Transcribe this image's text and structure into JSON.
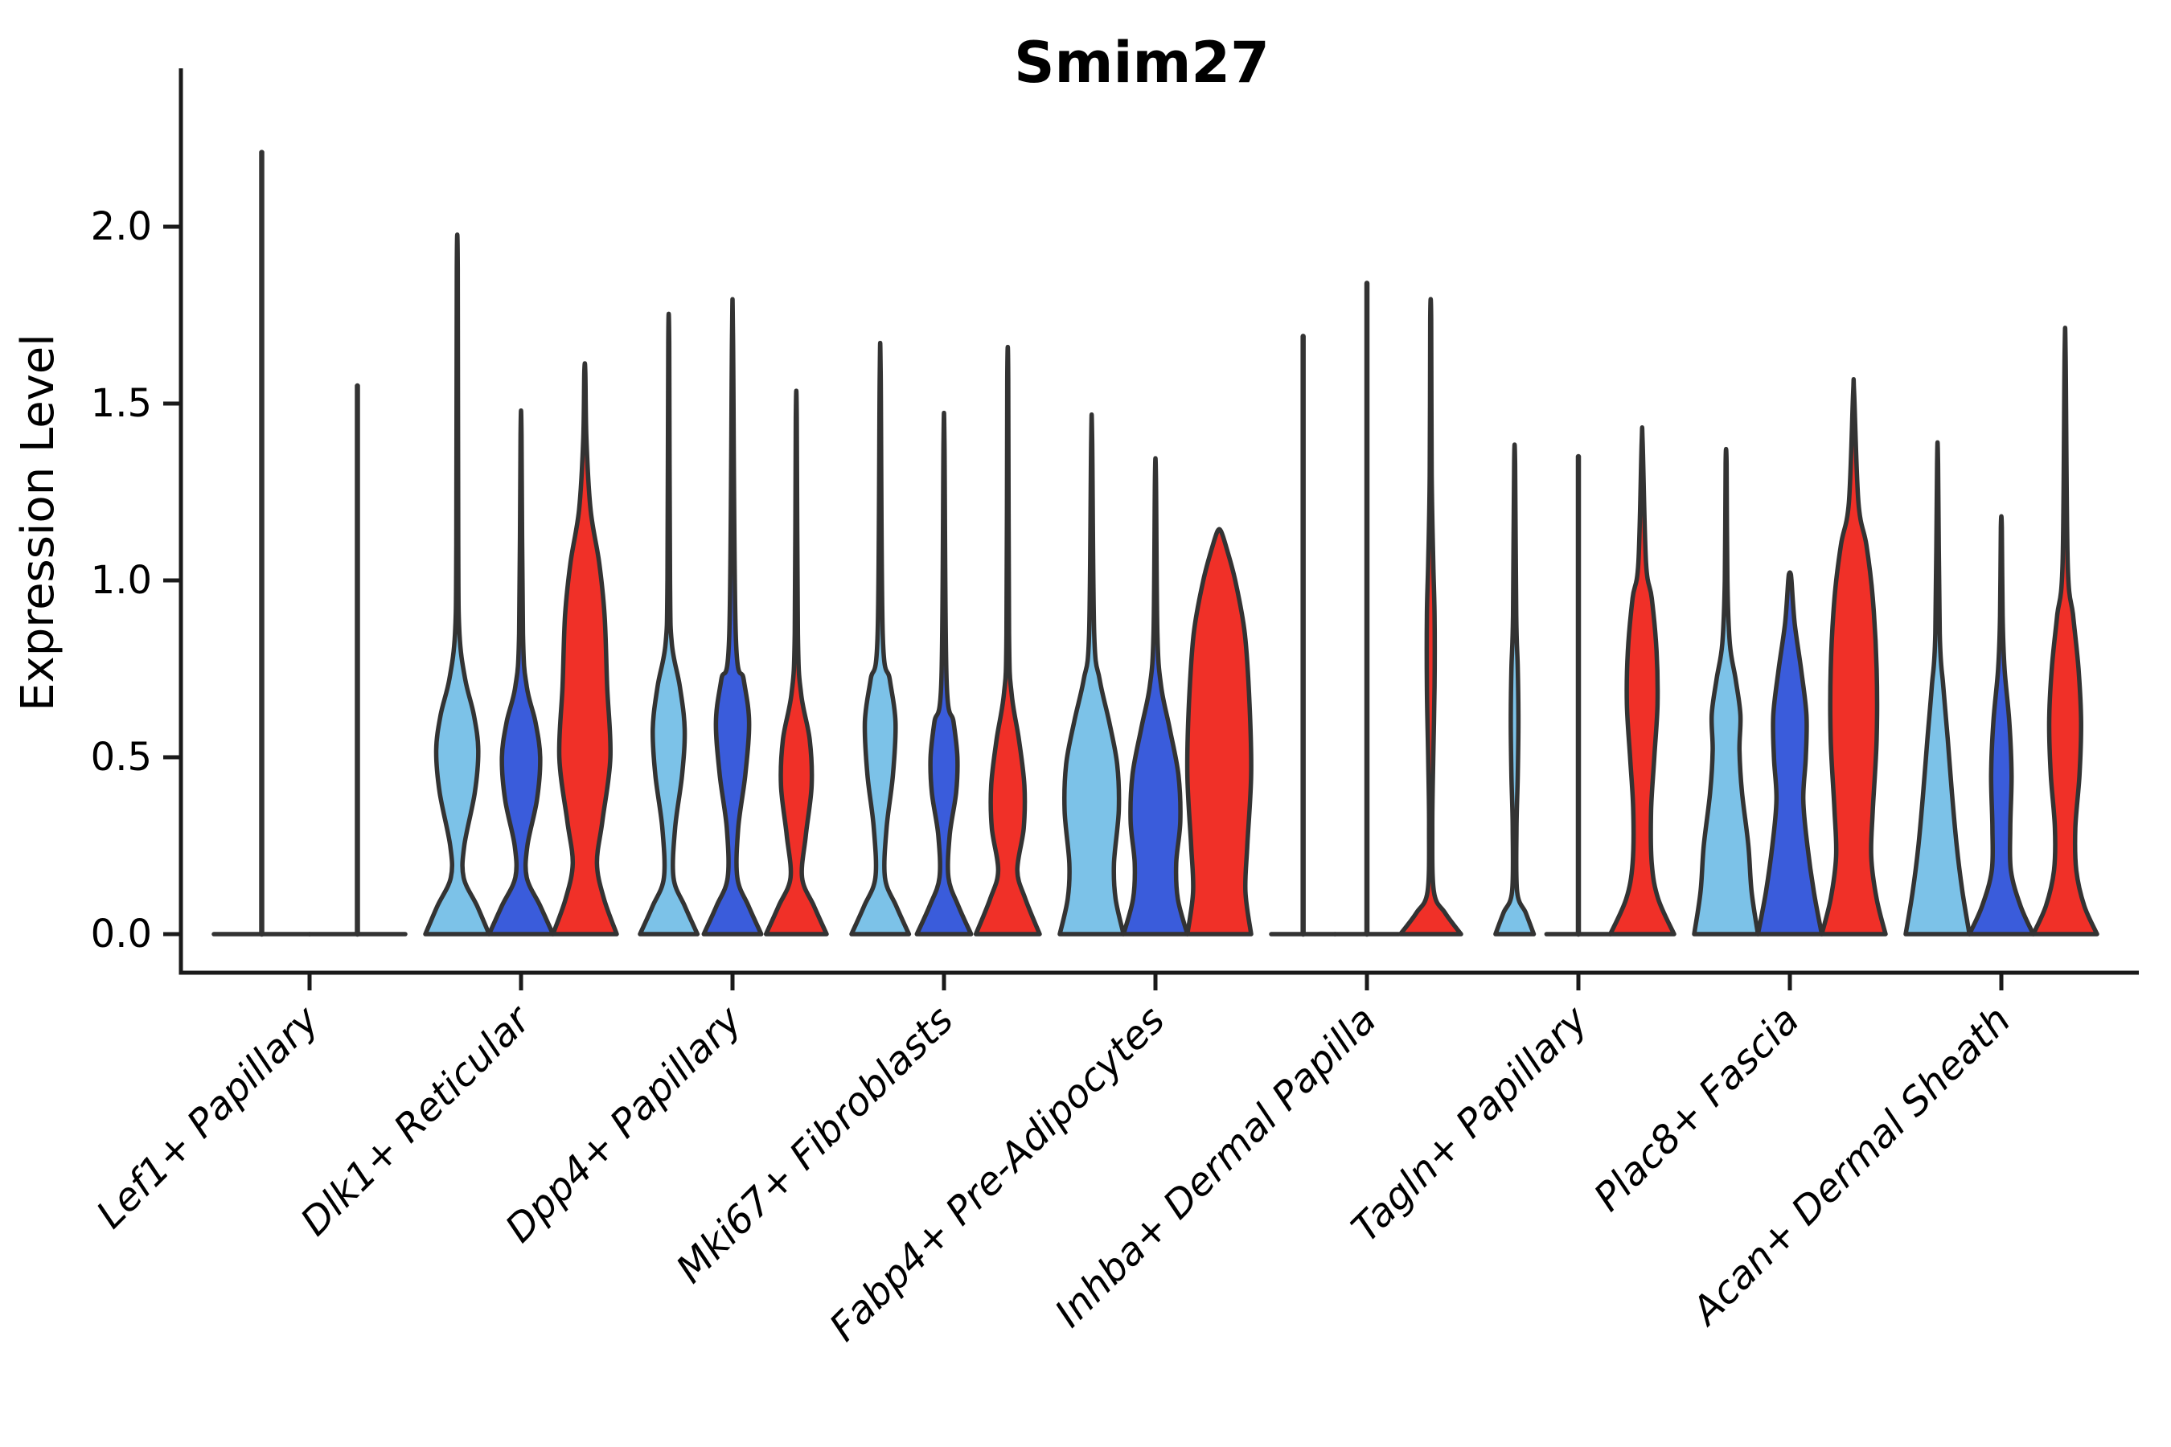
{
  "chart_data": {
    "type": "violin",
    "title": "Smim27",
    "ylabel": "Expression Level",
    "xlabel": "",
    "ylim": [
      -0.11,
      2.45
    ],
    "yticks": [
      0.0,
      0.5,
      1.0,
      1.5,
      2.0
    ],
    "ytick_labels": [
      "0.0",
      "0.5",
      "1.0",
      "1.5",
      "2.0"
    ],
    "grid": false,
    "legend_position": "none",
    "colors": {
      "lightblue": "#7CC2E8",
      "darkblue": "#3A5CDB",
      "red": "#F03028",
      "outline": "#333333",
      "axis": "#1a1a1a"
    },
    "categories": [
      "Lef1+ Papillary",
      "Dlk1+ Reticular",
      "Dpp4+ Papillary",
      "Mki67+ Fibroblasts",
      "Fabp4+ Pre-Adipocytes",
      "Inhba+ Dermal Papilla",
      "Tagln+ Papillary",
      "Plac8+ Fascia",
      "Acan+ Dermal Sheath"
    ],
    "groups": [
      {
        "category": "Lef1+ Papillary",
        "violins": [
          {
            "color": "lightblue",
            "max": 2.21,
            "profile": []
          },
          {
            "color": "darkblue",
            "max": 1.55,
            "profile": []
          }
        ]
      },
      {
        "category": "Dlk1+ Reticular",
        "violins": [
          {
            "color": "lightblue",
            "max": 1.88,
            "profile": [
              [
                0,
                1.0
              ],
              [
                0.08,
                0.62
              ],
              [
                0.16,
                0.2
              ],
              [
                0.25,
                0.22
              ],
              [
                0.4,
                0.55
              ],
              [
                0.52,
                0.66
              ],
              [
                0.62,
                0.52
              ],
              [
                0.72,
                0.25
              ],
              [
                0.85,
                0.07
              ],
              [
                1.1,
                0.03
              ],
              [
                1.88,
                0.015
              ]
            ]
          },
          {
            "color": "darkblue",
            "max": 1.41,
            "profile": [
              [
                0,
                1.0
              ],
              [
                0.08,
                0.6
              ],
              [
                0.16,
                0.18
              ],
              [
                0.25,
                0.2
              ],
              [
                0.38,
                0.5
              ],
              [
                0.5,
                0.6
              ],
              [
                0.6,
                0.45
              ],
              [
                0.7,
                0.18
              ],
              [
                0.85,
                0.06
              ],
              [
                1.41,
                0.015
              ]
            ]
          },
          {
            "color": "red",
            "max": 1.59,
            "profile": [
              [
                0,
                1.0
              ],
              [
                0.1,
                0.6
              ],
              [
                0.2,
                0.38
              ],
              [
                0.32,
                0.55
              ],
              [
                0.5,
                0.8
              ],
              [
                0.7,
                0.7
              ],
              [
                0.9,
                0.62
              ],
              [
                1.05,
                0.45
              ],
              [
                1.2,
                0.18
              ],
              [
                1.4,
                0.05
              ],
              [
                1.59,
                0.015
              ]
            ]
          }
        ]
      },
      {
        "category": "Dpp4+ Papillary",
        "violins": [
          {
            "color": "lightblue",
            "max": 1.67,
            "profile": [
              [
                0,
                0.9
              ],
              [
                0.08,
                0.5
              ],
              [
                0.16,
                0.15
              ],
              [
                0.3,
                0.2
              ],
              [
                0.45,
                0.42
              ],
              [
                0.58,
                0.5
              ],
              [
                0.7,
                0.35
              ],
              [
                0.82,
                0.1
              ],
              [
                1.0,
                0.04
              ],
              [
                1.67,
                0.015
              ]
            ]
          },
          {
            "color": "darkblue",
            "max": 1.69,
            "profile": [
              [
                0,
                0.9
              ],
              [
                0.08,
                0.5
              ],
              [
                0.16,
                0.15
              ],
              [
                0.3,
                0.18
              ],
              [
                0.45,
                0.4
              ],
              [
                0.6,
                0.52
              ],
              [
                0.72,
                0.35
              ],
              [
                0.85,
                0.1
              ],
              [
                1.69,
                0.015
              ]
            ]
          },
          {
            "color": "red",
            "max": 1.46,
            "profile": [
              [
                0,
                0.95
              ],
              [
                0.08,
                0.55
              ],
              [
                0.16,
                0.18
              ],
              [
                0.28,
                0.3
              ],
              [
                0.42,
                0.48
              ],
              [
                0.55,
                0.42
              ],
              [
                0.68,
                0.15
              ],
              [
                0.85,
                0.05
              ],
              [
                1.46,
                0.015
              ]
            ]
          }
        ]
      },
      {
        "category": "Mki67+ Fibroblasts",
        "violins": [
          {
            "color": "lightblue",
            "max": 1.58,
            "profile": [
              [
                0,
                0.9
              ],
              [
                0.08,
                0.5
              ],
              [
                0.16,
                0.15
              ],
              [
                0.3,
                0.2
              ],
              [
                0.45,
                0.4
              ],
              [
                0.6,
                0.48
              ],
              [
                0.72,
                0.3
              ],
              [
                0.85,
                0.08
              ],
              [
                1.58,
                0.015
              ]
            ]
          },
          {
            "color": "darkblue",
            "max": 1.39,
            "profile": [
              [
                0,
                0.85
              ],
              [
                0.08,
                0.45
              ],
              [
                0.16,
                0.14
              ],
              [
                0.28,
                0.18
              ],
              [
                0.4,
                0.38
              ],
              [
                0.5,
                0.42
              ],
              [
                0.6,
                0.3
              ],
              [
                0.72,
                0.08
              ],
              [
                1.39,
                0.015
              ]
            ]
          },
          {
            "color": "red",
            "max": 1.57,
            "profile": [
              [
                0,
                1.0
              ],
              [
                0.1,
                0.55
              ],
              [
                0.18,
                0.3
              ],
              [
                0.3,
                0.5
              ],
              [
                0.42,
                0.52
              ],
              [
                0.55,
                0.35
              ],
              [
                0.68,
                0.12
              ],
              [
                0.85,
                0.04
              ],
              [
                1.57,
                0.015
              ]
            ]
          }
        ]
      },
      {
        "category": "Fabp4+ Pre-Adipocytes",
        "violins": [
          {
            "color": "lightblue",
            "max": 1.4,
            "profile": [
              [
                0,
                1.0
              ],
              [
                0.1,
                0.75
              ],
              [
                0.2,
                0.7
              ],
              [
                0.35,
                0.85
              ],
              [
                0.48,
                0.8
              ],
              [
                0.6,
                0.55
              ],
              [
                0.72,
                0.25
              ],
              [
                0.85,
                0.08
              ],
              [
                1.4,
                0.015
              ]
            ]
          },
          {
            "color": "darkblue",
            "max": 1.29,
            "profile": [
              [
                0,
                1.0
              ],
              [
                0.1,
                0.7
              ],
              [
                0.2,
                0.65
              ],
              [
                0.32,
                0.78
              ],
              [
                0.45,
                0.72
              ],
              [
                0.58,
                0.45
              ],
              [
                0.7,
                0.18
              ],
              [
                0.85,
                0.06
              ],
              [
                1.29,
                0.015
              ]
            ]
          },
          {
            "color": "red",
            "max": 1.14,
            "profile": [
              [
                0,
                1.0
              ],
              [
                0.12,
                0.82
              ],
              [
                0.25,
                0.88
              ],
              [
                0.45,
                1.0
              ],
              [
                0.65,
                0.95
              ],
              [
                0.85,
                0.8
              ],
              [
                1.0,
                0.5
              ],
              [
                1.1,
                0.2
              ],
              [
                1.14,
                0.05
              ]
            ]
          }
        ]
      },
      {
        "category": "Inhba+ Dermal Papilla",
        "violins": [
          {
            "color": "lightblue",
            "max": 1.69,
            "profile": []
          },
          {
            "color": "darkblue",
            "max": 1.84,
            "profile": []
          },
          {
            "color": "red",
            "max": 1.74,
            "profile": [
              [
                0,
                0.95
              ],
              [
                0.06,
                0.45
              ],
              [
                0.12,
                0.1
              ],
              [
                0.3,
                0.05
              ],
              [
                0.5,
                0.08
              ],
              [
                0.7,
                0.12
              ],
              [
                0.9,
                0.12
              ],
              [
                1.05,
                0.08
              ],
              [
                1.3,
                0.03
              ],
              [
                1.74,
                0.015
              ]
            ]
          }
        ]
      },
      {
        "category": "Tagln+ Papillary",
        "violins": [
          {
            "color": "lightblue",
            "max": 1.33,
            "profile": [
              [
                0,
                0.6
              ],
              [
                0.06,
                0.35
              ],
              [
                0.12,
                0.08
              ],
              [
                0.3,
                0.06
              ],
              [
                0.45,
                0.1
              ],
              [
                0.6,
                0.12
              ],
              [
                0.75,
                0.1
              ],
              [
                0.9,
                0.05
              ],
              [
                1.33,
                0.015
              ]
            ]
          },
          {
            "color": "darkblue",
            "max": 1.35,
            "profile": []
          },
          {
            "color": "red",
            "max": 1.39,
            "profile": [
              [
                0,
                1.0
              ],
              [
                0.1,
                0.5
              ],
              [
                0.2,
                0.3
              ],
              [
                0.35,
                0.28
              ],
              [
                0.5,
                0.38
              ],
              [
                0.65,
                0.48
              ],
              [
                0.8,
                0.45
              ],
              [
                0.95,
                0.3
              ],
              [
                1.05,
                0.12
              ],
              [
                1.39,
                0.015
              ]
            ]
          }
        ]
      },
      {
        "category": "Plac8+ Fascia",
        "violins": [
          {
            "color": "lightblue",
            "max": 1.33,
            "profile": [
              [
                0,
                1.0
              ],
              [
                0.12,
                0.8
              ],
              [
                0.25,
                0.7
              ],
              [
                0.4,
                0.5
              ],
              [
                0.52,
                0.42
              ],
              [
                0.62,
                0.45
              ],
              [
                0.72,
                0.3
              ],
              [
                0.82,
                0.12
              ],
              [
                1.0,
                0.04
              ],
              [
                1.33,
                0.015
              ]
            ]
          },
          {
            "color": "darkblue",
            "max": 1.02,
            "profile": [
              [
                0,
                1.0
              ],
              [
                0.12,
                0.75
              ],
              [
                0.25,
                0.55
              ],
              [
                0.38,
                0.42
              ],
              [
                0.5,
                0.5
              ],
              [
                0.62,
                0.52
              ],
              [
                0.75,
                0.35
              ],
              [
                0.88,
                0.15
              ],
              [
                1.0,
                0.05
              ],
              [
                1.02,
                0.02
              ]
            ]
          },
          {
            "color": "red",
            "max": 1.53,
            "profile": [
              [
                0,
                1.0
              ],
              [
                0.1,
                0.72
              ],
              [
                0.22,
                0.55
              ],
              [
                0.35,
                0.6
              ],
              [
                0.55,
                0.72
              ],
              [
                0.75,
                0.72
              ],
              [
                0.95,
                0.6
              ],
              [
                1.1,
                0.4
              ],
              [
                1.22,
                0.15
              ],
              [
                1.53,
                0.015
              ]
            ]
          }
        ]
      },
      {
        "category": "Acan+ Dermal Sheath",
        "violins": [
          {
            "color": "lightblue",
            "max": 1.33,
            "profile": [
              [
                0,
                1.0
              ],
              [
                0.12,
                0.78
              ],
              [
                0.25,
                0.6
              ],
              [
                0.4,
                0.45
              ],
              [
                0.55,
                0.32
              ],
              [
                0.7,
                0.18
              ],
              [
                0.85,
                0.07
              ],
              [
                1.33,
                0.015
              ]
            ]
          },
          {
            "color": "darkblue",
            "max": 1.15,
            "profile": [
              [
                0,
                1.0
              ],
              [
                0.08,
                0.6
              ],
              [
                0.18,
                0.3
              ],
              [
                0.3,
                0.28
              ],
              [
                0.45,
                0.32
              ],
              [
                0.6,
                0.25
              ],
              [
                0.75,
                0.1
              ],
              [
                0.9,
                0.04
              ],
              [
                1.15,
                0.015
              ]
            ]
          },
          {
            "color": "red",
            "max": 1.64,
            "profile": [
              [
                0,
                1.0
              ],
              [
                0.08,
                0.6
              ],
              [
                0.18,
                0.35
              ],
              [
                0.3,
                0.32
              ],
              [
                0.45,
                0.45
              ],
              [
                0.6,
                0.5
              ],
              [
                0.75,
                0.42
              ],
              [
                0.9,
                0.25
              ],
              [
                1.05,
                0.08
              ],
              [
                1.64,
                0.015
              ]
            ]
          }
        ]
      }
    ]
  }
}
